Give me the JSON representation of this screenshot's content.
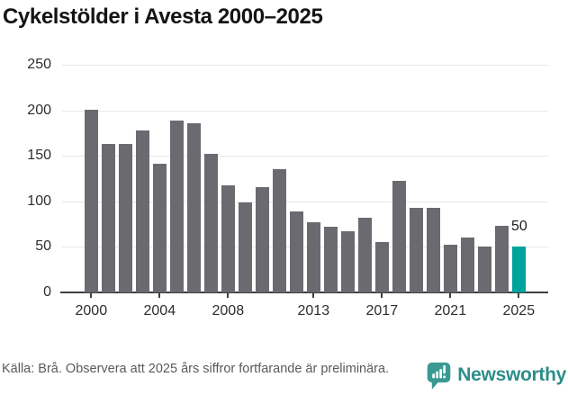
{
  "title": "Cykelstölder i Avesta 2000–2025",
  "chart_data": {
    "type": "bar",
    "title": "Cykelstölder i Avesta 2000–2025",
    "categories": [
      "2000",
      "2001",
      "2002",
      "2003",
      "2004",
      "2005",
      "2006",
      "2007",
      "2008",
      "2009",
      "2010",
      "2011",
      "2012",
      "2013",
      "2014",
      "2015",
      "2016",
      "2017",
      "2018",
      "2019",
      "2020",
      "2021",
      "2022",
      "2023",
      "2024",
      "2025"
    ],
    "values": [
      201,
      163,
      163,
      178,
      141,
      189,
      186,
      152,
      118,
      99,
      116,
      135,
      89,
      77,
      72,
      67,
      82,
      55,
      123,
      93,
      93,
      52,
      60,
      50,
      73,
      50
    ],
    "xlabel": "",
    "ylabel": "",
    "ylim": [
      0,
      250
    ],
    "yticks": [
      0,
      50,
      100,
      150,
      200,
      250
    ],
    "xticks": [
      "2000",
      "2004",
      "2008",
      "2013",
      "2017",
      "2021",
      "2025"
    ],
    "grid": true,
    "legend": "none",
    "bar_color": "#6b6a70",
    "highlight_index": 25,
    "highlight_color": "#00a39c",
    "highlight_label": "50"
  },
  "footer": {
    "source_note": "Källa: Brå. Observera att 2025 års siffror fortfarande är preliminära.",
    "brand": "Newsworthy",
    "brand_color": "#2d8e89",
    "logo_icon": "newsworthy-bubble-barchart-icon",
    "logo_color": "#3a9a93"
  }
}
